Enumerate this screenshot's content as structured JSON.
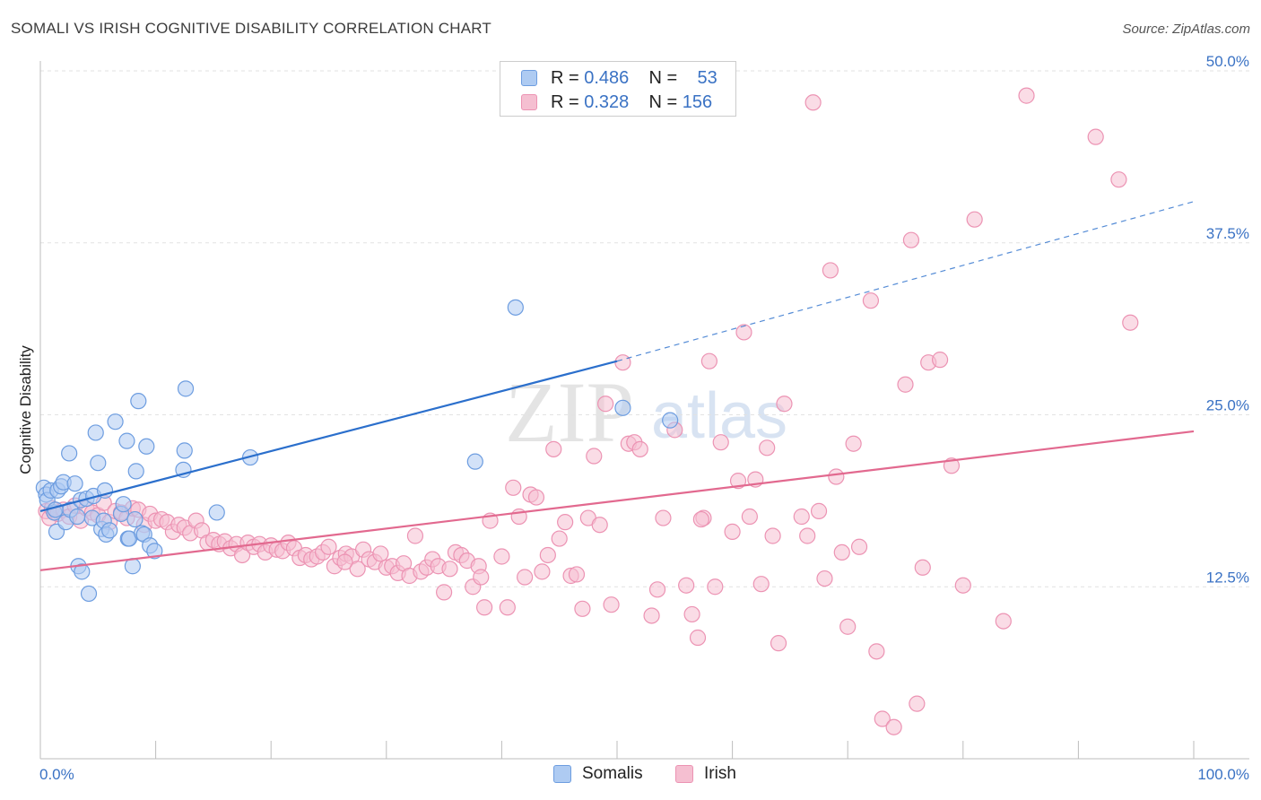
{
  "header": {
    "title": "SOMALI VS IRISH COGNITIVE DISABILITY CORRELATION CHART",
    "source": "Source: ZipAtlas.com"
  },
  "watermark": {
    "zip": "ZIP",
    "atlas": "atlas"
  },
  "colors": {
    "somali_fill": "#aecbf2",
    "somali_stroke": "#6d9de0",
    "somali_line": "#2b6fcc",
    "irish_fill": "#f5bfd1",
    "irish_stroke": "#ec93b3",
    "irish_line": "#e2698f",
    "tick_text": "#3a72c4",
    "grid": "#e2e2e2"
  },
  "legend_top": {
    "rows": [
      {
        "r_label": "R =",
        "r_value": "0.486",
        "n_label": "N =",
        "n_value": "53"
      },
      {
        "r_label": "R =",
        "r_value": "0.328",
        "n_label": "N =",
        "n_value": "156"
      }
    ]
  },
  "legend_bottom": {
    "somali": "Somalis",
    "irish": "Irish"
  },
  "chart_data": {
    "type": "scatter",
    "title": "SOMALI VS IRISH COGNITIVE DISABILITY CORRELATION CHART",
    "xlabel": "",
    "ylabel": "Cognitive Disability",
    "xlim": [
      0,
      100
    ],
    "ylim": [
      0,
      50
    ],
    "x_tick_labels": [
      "0.0%",
      "100.0%"
    ],
    "y_tick_labels": [
      "12.5%",
      "25.0%",
      "37.5%",
      "50.0%"
    ],
    "y_ticks": [
      12.5,
      25.0,
      37.5,
      50.0
    ],
    "x_ticks": [
      0,
      10,
      20,
      30,
      40,
      50,
      60,
      70,
      80,
      90,
      100
    ],
    "grid": "horizontal dashed",
    "series": [
      {
        "name": "Somalis",
        "R": 0.486,
        "N": 53,
        "trend": {
          "x0": 0,
          "y0": 18.0,
          "x1": 50,
          "y1": 28.9,
          "dashed_to_x": 100,
          "dashed_to_y": 40.5
        },
        "points": [
          [
            0.3,
            19.7
          ],
          [
            0.5,
            19.2
          ],
          [
            0.6,
            18.8
          ],
          [
            0.9,
            19.5
          ],
          [
            1.2,
            17.9
          ],
          [
            1.3,
            18.1
          ],
          [
            1.5,
            19.5
          ],
          [
            1.4,
            16.5
          ],
          [
            1.8,
            19.8
          ],
          [
            2.0,
            20.1
          ],
          [
            2.2,
            17.2
          ],
          [
            2.5,
            22.2
          ],
          [
            2.6,
            18.1
          ],
          [
            3.0,
            20.0
          ],
          [
            3.2,
            17.6
          ],
          [
            3.3,
            14.0
          ],
          [
            3.5,
            18.8
          ],
          [
            3.6,
            13.6
          ],
          [
            4.0,
            18.9
          ],
          [
            4.2,
            12.0
          ],
          [
            4.5,
            17.5
          ],
          [
            4.6,
            19.1
          ],
          [
            4.8,
            23.7
          ],
          [
            5.0,
            21.5
          ],
          [
            5.3,
            16.7
          ],
          [
            5.5,
            17.3
          ],
          [
            5.6,
            19.5
          ],
          [
            5.7,
            16.3
          ],
          [
            6.0,
            16.6
          ],
          [
            6.5,
            24.5
          ],
          [
            7.0,
            17.8
          ],
          [
            7.2,
            18.5
          ],
          [
            7.5,
            23.1
          ],
          [
            7.6,
            16.0
          ],
          [
            7.7,
            16.0
          ],
          [
            8.0,
            14.0
          ],
          [
            8.2,
            17.4
          ],
          [
            8.3,
            20.9
          ],
          [
            8.5,
            26.0
          ],
          [
            8.8,
            16.4
          ],
          [
            9.0,
            16.3
          ],
          [
            9.2,
            22.7
          ],
          [
            9.5,
            15.5
          ],
          [
            9.9,
            15.1
          ],
          [
            12.4,
            21.0
          ],
          [
            12.5,
            22.4
          ],
          [
            12.6,
            26.9
          ],
          [
            15.3,
            17.9
          ],
          [
            18.2,
            21.9
          ],
          [
            37.7,
            21.6
          ],
          [
            41.2,
            32.8
          ],
          [
            54.6,
            24.6
          ],
          [
            50.5,
            25.5
          ]
        ]
      },
      {
        "name": "Irish",
        "R": 0.328,
        "N": 156,
        "trend": {
          "x0": 0,
          "y0": 13.7,
          "x1": 100,
          "y1": 23.8
        },
        "points": [
          [
            0.5,
            18.0
          ],
          [
            0.8,
            17.5
          ],
          [
            1.0,
            18.2
          ],
          [
            1.5,
            17.8
          ],
          [
            2.0,
            18.1
          ],
          [
            2.5,
            17.6
          ],
          [
            3.0,
            18.4
          ],
          [
            3.5,
            17.3
          ],
          [
            4.0,
            18.2
          ],
          [
            4.5,
            17.9
          ],
          [
            5.0,
            17.7
          ],
          [
            5.5,
            18.6
          ],
          [
            6.0,
            17.2
          ],
          [
            6.5,
            18.0
          ],
          [
            7.0,
            17.9
          ],
          [
            7.5,
            17.5
          ],
          [
            8.0,
            18.2
          ],
          [
            8.5,
            18.1
          ],
          [
            9.0,
            17.0
          ],
          [
            9.5,
            17.8
          ],
          [
            10.0,
            17.3
          ],
          [
            10.5,
            17.4
          ],
          [
            11.0,
            17.2
          ],
          [
            11.5,
            16.5
          ],
          [
            12.0,
            17.0
          ],
          [
            12.5,
            16.8
          ],
          [
            13.0,
            16.4
          ],
          [
            13.5,
            17.3
          ],
          [
            14.0,
            16.6
          ],
          [
            14.5,
            15.7
          ],
          [
            15.0,
            15.9
          ],
          [
            15.5,
            15.6
          ],
          [
            16.0,
            15.8
          ],
          [
            16.5,
            15.3
          ],
          [
            17.0,
            15.6
          ],
          [
            17.5,
            14.8
          ],
          [
            18.0,
            15.7
          ],
          [
            18.5,
            15.4
          ],
          [
            19.0,
            15.6
          ],
          [
            19.5,
            15.0
          ],
          [
            20.0,
            15.5
          ],
          [
            20.5,
            15.2
          ],
          [
            21.0,
            15.1
          ],
          [
            21.5,
            15.7
          ],
          [
            22.0,
            15.3
          ],
          [
            22.5,
            14.6
          ],
          [
            23.0,
            14.8
          ],
          [
            23.5,
            14.5
          ],
          [
            24.0,
            14.7
          ],
          [
            24.5,
            15.0
          ],
          [
            25.0,
            15.4
          ],
          [
            25.5,
            14.0
          ],
          [
            26.0,
            14.6
          ],
          [
            26.5,
            14.9
          ],
          [
            27.0,
            14.7
          ],
          [
            27.5,
            13.8
          ],
          [
            28.0,
            15.2
          ],
          [
            28.5,
            14.5
          ],
          [
            29.0,
            14.3
          ],
          [
            29.5,
            14.9
          ],
          [
            30.0,
            13.9
          ],
          [
            30.5,
            14.0
          ],
          [
            31.0,
            13.5
          ],
          [
            31.5,
            14.2
          ],
          [
            32.0,
            13.3
          ],
          [
            32.5,
            16.2
          ],
          [
            33.0,
            13.6
          ],
          [
            33.5,
            13.9
          ],
          [
            34.0,
            14.5
          ],
          [
            34.5,
            14.0
          ],
          [
            35.0,
            12.1
          ],
          [
            35.5,
            13.8
          ],
          [
            36.0,
            15.0
          ],
          [
            36.5,
            14.8
          ],
          [
            37.0,
            14.4
          ],
          [
            37.5,
            12.5
          ],
          [
            38.0,
            14.0
          ],
          [
            38.5,
            11.0
          ],
          [
            39.0,
            17.3
          ],
          [
            40.0,
            14.7
          ],
          [
            40.5,
            11.0
          ],
          [
            41.0,
            19.7
          ],
          [
            41.5,
            17.6
          ],
          [
            42.0,
            13.2
          ],
          [
            42.5,
            19.2
          ],
          [
            43.0,
            19.0
          ],
          [
            43.5,
            13.6
          ],
          [
            44.0,
            14.8
          ],
          [
            44.5,
            22.5
          ],
          [
            45.0,
            16.0
          ],
          [
            46.0,
            13.3
          ],
          [
            46.5,
            13.4
          ],
          [
            47.0,
            10.9
          ],
          [
            47.5,
            17.5
          ],
          [
            48.0,
            22.0
          ],
          [
            48.5,
            17.0
          ],
          [
            49.0,
            25.8
          ],
          [
            49.5,
            11.2
          ],
          [
            50.5,
            28.8
          ],
          [
            51.0,
            22.9
          ],
          [
            51.5,
            23.0
          ],
          [
            52.0,
            22.5
          ],
          [
            53.0,
            10.4
          ],
          [
            53.5,
            12.3
          ],
          [
            54.0,
            17.5
          ],
          [
            55.0,
            23.9
          ],
          [
            56.0,
            12.6
          ],
          [
            56.5,
            10.5
          ],
          [
            57.0,
            8.8
          ],
          [
            57.5,
            17.5
          ],
          [
            58.0,
            28.9
          ],
          [
            58.5,
            12.5
          ],
          [
            59.0,
            23.0
          ],
          [
            60.0,
            16.5
          ],
          [
            60.5,
            20.2
          ],
          [
            61.0,
            31.0
          ],
          [
            61.5,
            17.6
          ],
          [
            62.0,
            20.3
          ],
          [
            62.5,
            12.7
          ],
          [
            63.0,
            22.6
          ],
          [
            63.5,
            16.2
          ],
          [
            64.0,
            8.4
          ],
          [
            64.5,
            25.8
          ],
          [
            66.0,
            17.6
          ],
          [
            66.5,
            16.2
          ],
          [
            67.0,
            47.7
          ],
          [
            67.5,
            18.0
          ],
          [
            68.0,
            13.1
          ],
          [
            68.5,
            35.5
          ],
          [
            69.0,
            20.5
          ],
          [
            69.5,
            15.0
          ],
          [
            70.0,
            9.6
          ],
          [
            70.5,
            22.9
          ],
          [
            71.0,
            15.4
          ],
          [
            72.0,
            33.3
          ],
          [
            72.5,
            7.8
          ],
          [
            73.0,
            2.9
          ],
          [
            74.0,
            2.3
          ],
          [
            75.0,
            27.2
          ],
          [
            75.5,
            37.7
          ],
          [
            76.0,
            4.0
          ],
          [
            76.5,
            13.9
          ],
          [
            77.0,
            28.8
          ],
          [
            78.0,
            29.0
          ],
          [
            79.0,
            21.3
          ],
          [
            80.0,
            12.6
          ],
          [
            81.0,
            39.2
          ],
          [
            83.5,
            10.0
          ],
          [
            85.5,
            48.2
          ],
          [
            91.5,
            45.2
          ],
          [
            93.5,
            42.1
          ],
          [
            94.5,
            31.7
          ],
          [
            57.3,
            17.4
          ],
          [
            45.5,
            17.2
          ],
          [
            38.2,
            13.2
          ],
          [
            26.4,
            14.3
          ]
        ]
      }
    ]
  }
}
